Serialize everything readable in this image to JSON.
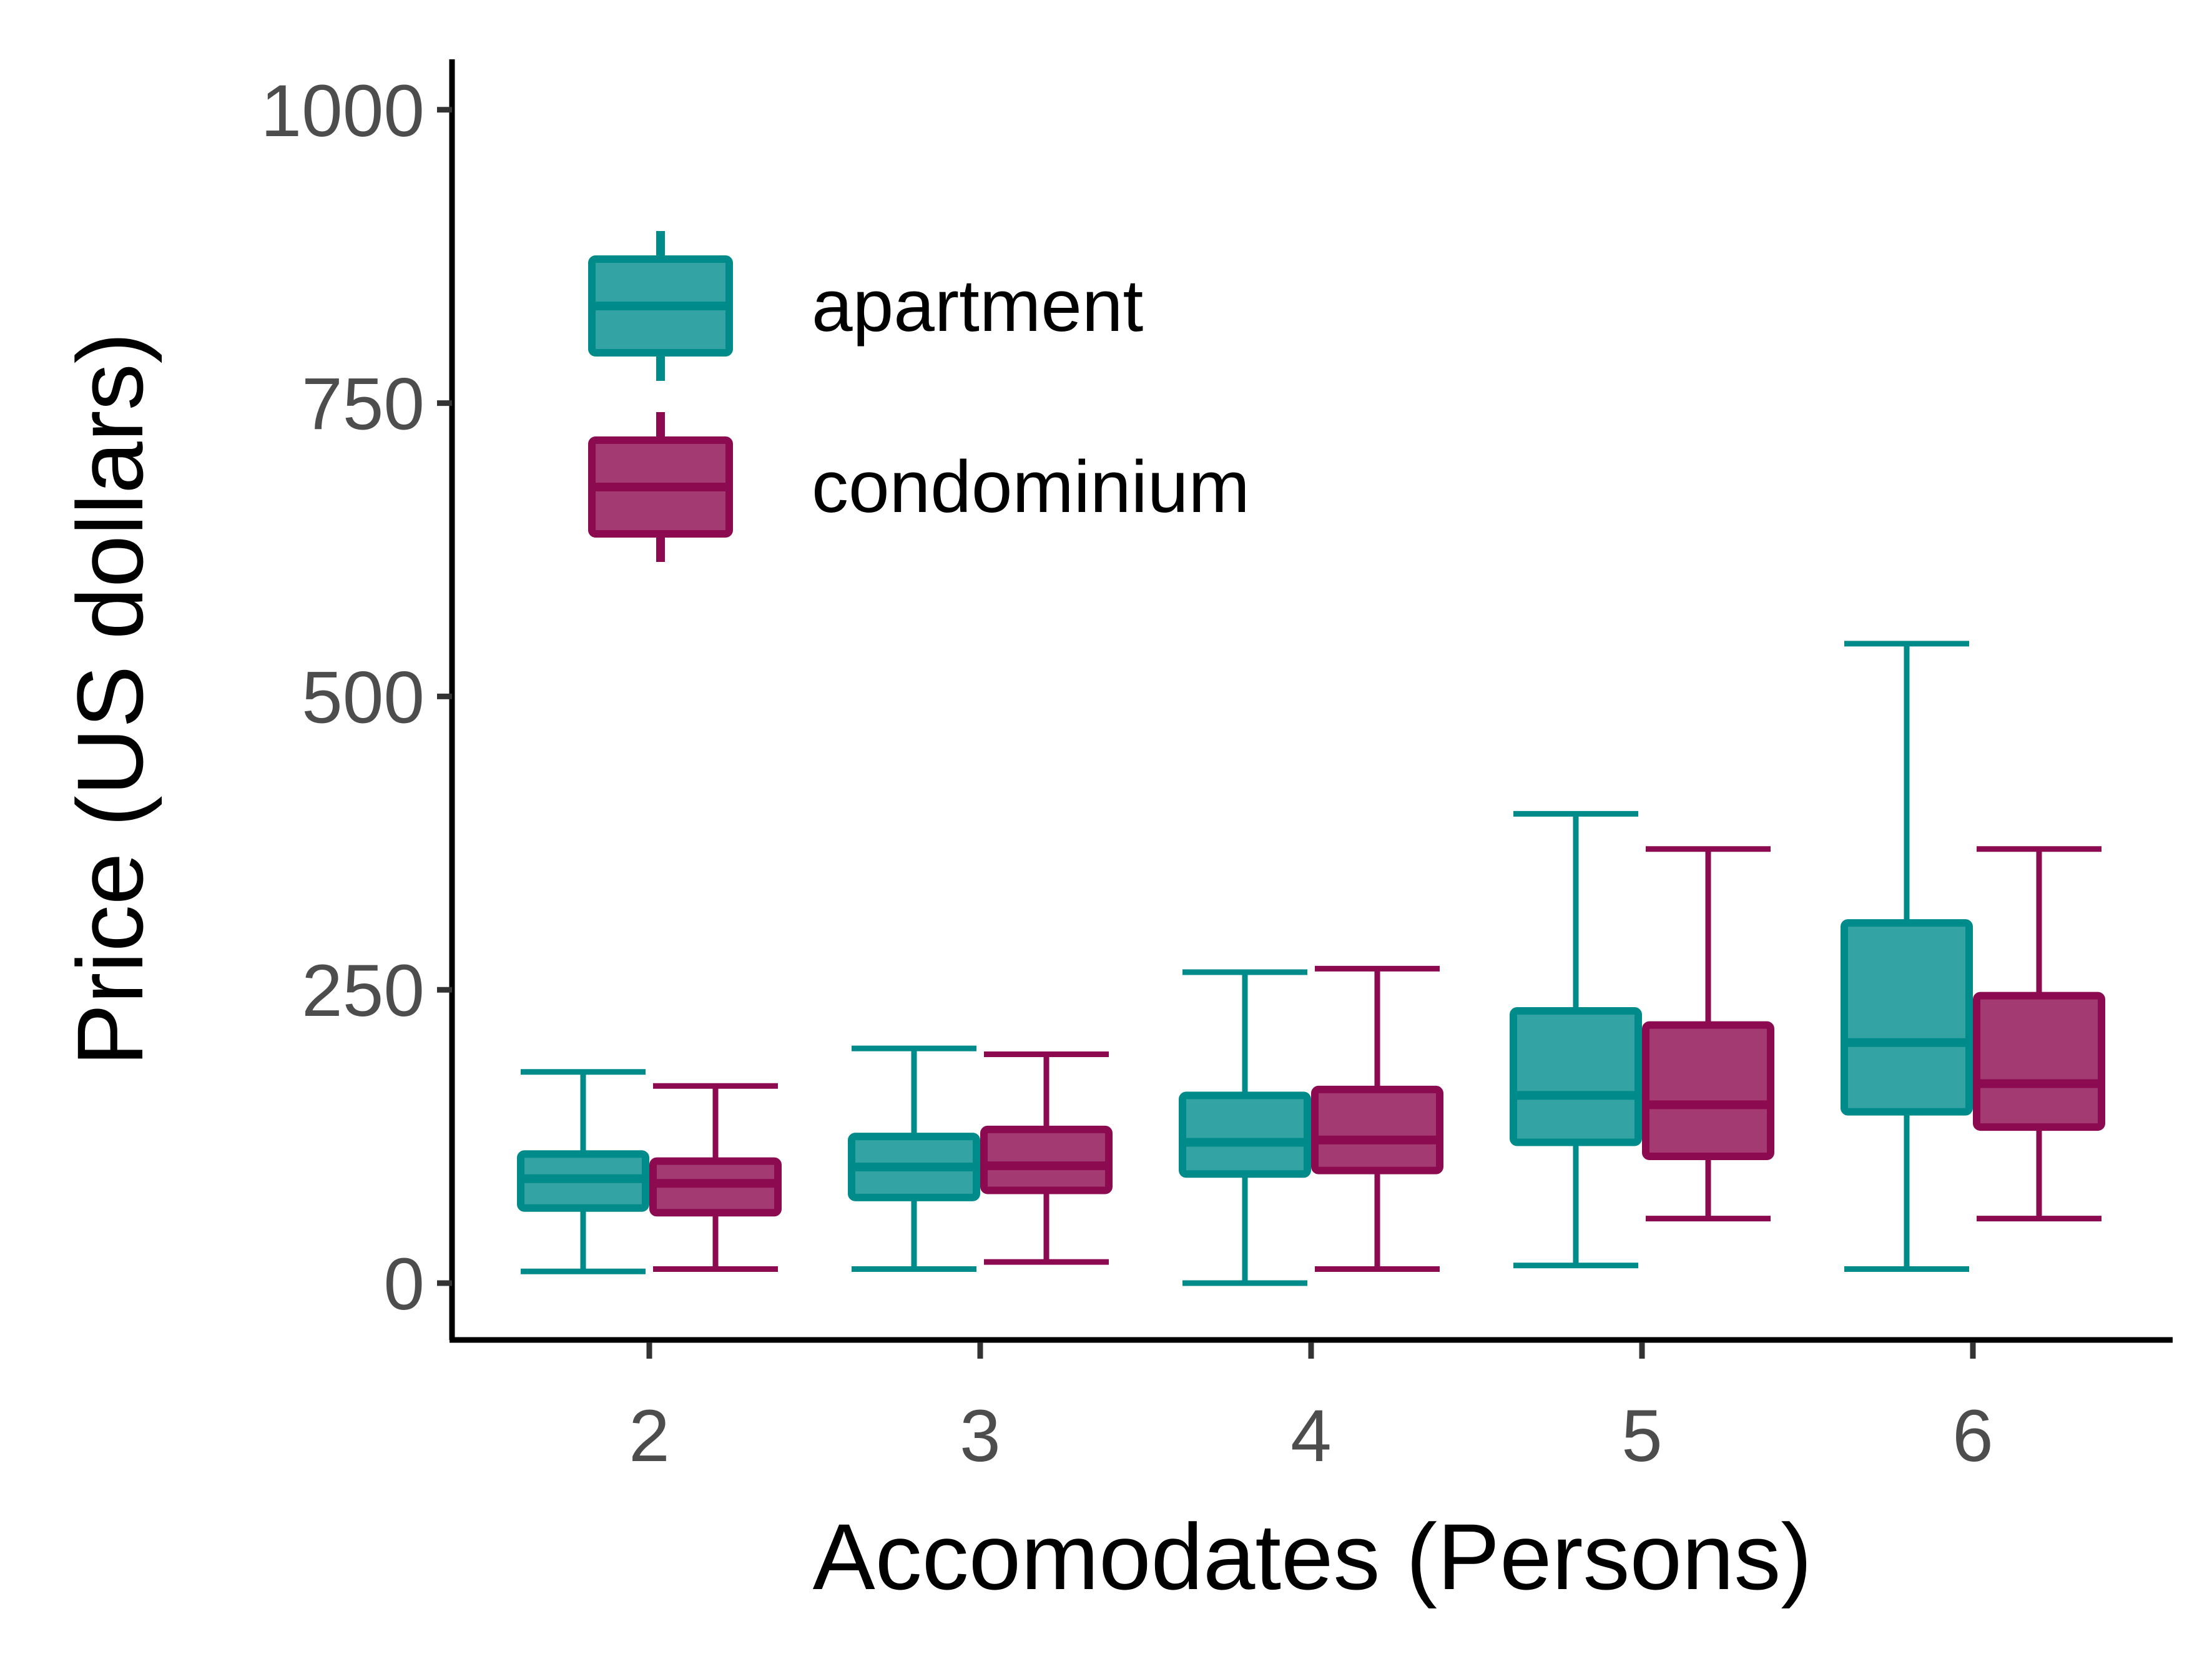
{
  "chart_data": {
    "type": "boxplot",
    "title": "",
    "xlabel": "Accomodates (Persons)",
    "ylabel": "Price (US dollars)",
    "categories": [
      "2",
      "3",
      "4",
      "5",
      "6"
    ],
    "yticks": [
      0,
      250,
      500,
      750,
      1000
    ],
    "ytick_labels": [
      "0",
      "250",
      "500",
      "750",
      "1000"
    ],
    "ylim": [
      -48,
      1045
    ],
    "grid": false,
    "legend_position": "top-left",
    "series": [
      {
        "name": "apartment",
        "color": "#008b8b",
        "fill": "#33a3a3",
        "boxes": [
          {
            "whisker_low": 10,
            "q1": 64,
            "median": 89,
            "q3": 110,
            "whisker_high": 180
          },
          {
            "whisker_low": 12,
            "q1": 73,
            "median": 99,
            "q3": 125,
            "whisker_high": 200
          },
          {
            "whisker_low": 0,
            "q1": 93,
            "median": 120,
            "q3": 160,
            "whisker_high": 265
          },
          {
            "whisker_low": 15,
            "q1": 120,
            "median": 160,
            "q3": 232,
            "whisker_high": 400
          },
          {
            "whisker_low": 12,
            "q1": 146,
            "median": 205,
            "q3": 307,
            "whisker_high": 545
          }
        ]
      },
      {
        "name": "condominium",
        "color": "#8b0a50",
        "fill": "#a33a72",
        "boxes": [
          {
            "whisker_low": 12,
            "q1": 60,
            "median": 85,
            "q3": 104,
            "whisker_high": 168
          },
          {
            "whisker_low": 18,
            "q1": 79,
            "median": 100,
            "q3": 131,
            "whisker_high": 195
          },
          {
            "whisker_low": 12,
            "q1": 96,
            "median": 122,
            "q3": 165,
            "whisker_high": 268
          },
          {
            "whisker_low": 55,
            "q1": 108,
            "median": 152,
            "q3": 220,
            "whisker_high": 370
          },
          {
            "whisker_low": 55,
            "q1": 133,
            "median": 170,
            "q3": 245,
            "whisker_high": 370
          }
        ]
      }
    ]
  }
}
